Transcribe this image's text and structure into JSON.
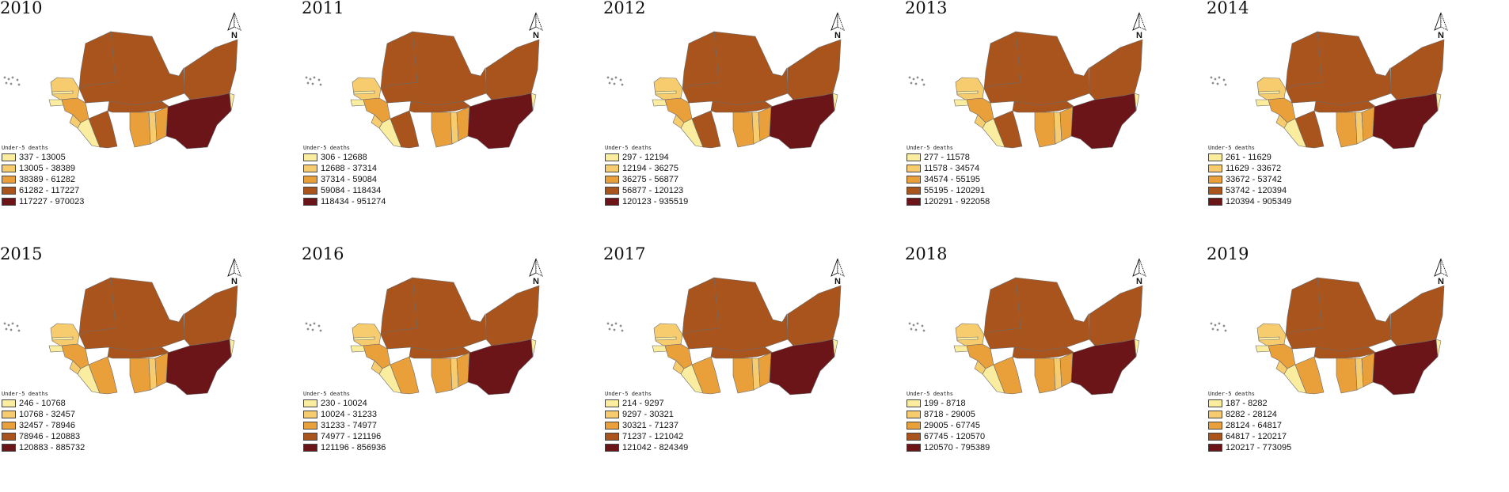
{
  "legend_title": "Under-5 deaths",
  "north_label": "N",
  "class_colors": [
    "#fbeda0",
    "#f6cc6e",
    "#e9a03a",
    "#a8541c",
    "#6b1519"
  ],
  "panels": [
    {
      "year": "2010",
      "legend": [
        "337 - 13005",
        "13005 - 38389",
        "38389 - 61282",
        "61282 - 117227",
        "117227 - 970023"
      ]
    },
    {
      "year": "2011",
      "legend": [
        "306 - 12688",
        "12688 - 37314",
        "37314 - 59084",
        "59084 - 118434",
        "118434 - 951274"
      ]
    },
    {
      "year": "2012",
      "legend": [
        "297 - 12194",
        "12194 - 36275",
        "36275 - 56877",
        "56877 - 120123",
        "120123 - 935519"
      ]
    },
    {
      "year": "2013",
      "legend": [
        "277 - 11578",
        "11578 - 34574",
        "34574 - 55195",
        "55195 - 120291",
        "120291 - 922058"
      ]
    },
    {
      "year": "2014",
      "legend": [
        "261 - 11629",
        "11629 - 33672",
        "33672 - 53742",
        "53742 - 120394",
        "120394 - 905349"
      ]
    },
    {
      "year": "2015",
      "legend": [
        "246 - 10768",
        "10768 - 32457",
        "32457 - 78946",
        "78946 - 120883",
        "120883 - 885732"
      ]
    },
    {
      "year": "2016",
      "legend": [
        "230 - 10024",
        "10024 - 31233",
        "31233 - 74977",
        "74977 - 121196",
        "121196 - 856936"
      ]
    },
    {
      "year": "2017",
      "legend": [
        "214 - 9297",
        "9297 - 30321",
        "30321 - 71237",
        "71237 - 121042",
        "121042 - 824349"
      ]
    },
    {
      "year": "2018",
      "legend": [
        "199 - 8718",
        "8718 - 29005",
        "29005 - 67745",
        "67745 - 120570",
        "120570 - 795389"
      ]
    },
    {
      "year": "2019",
      "legend": [
        "187 - 8282",
        "8282 - 28124",
        "28124 - 64817",
        "64817 - 120217",
        "120217 - 773095"
      ]
    }
  ]
}
